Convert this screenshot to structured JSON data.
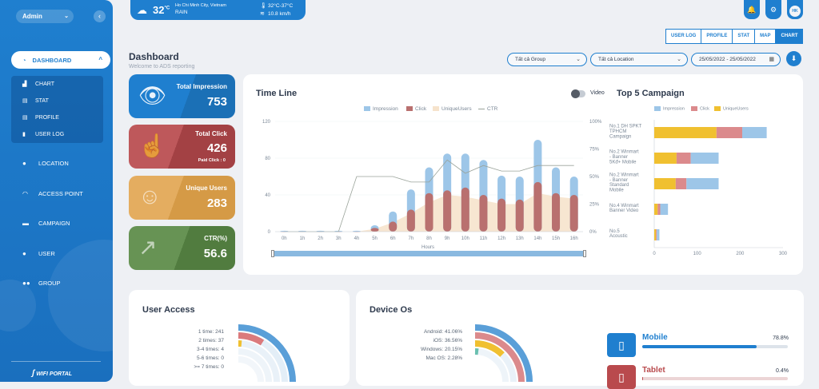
{
  "sidebar": {
    "admin_label": "Admin",
    "dashboard_label": "DASHBOARD",
    "subitems": [
      {
        "label": "CHART",
        "icon": "chart-icon"
      },
      {
        "label": "STAT",
        "icon": "stat-icon"
      },
      {
        "label": "PROFILE",
        "icon": "profile-icon"
      },
      {
        "label": "USER LOG",
        "icon": "log-icon"
      }
    ],
    "items": [
      {
        "label": "LOCATION",
        "icon": "location-icon"
      },
      {
        "label": "ACCESS POINT",
        "icon": "wifi-icon"
      },
      {
        "label": "CAMPAIGN",
        "icon": "campaign-icon"
      },
      {
        "label": "USER",
        "icon": "user-icon"
      },
      {
        "label": "GROUP",
        "icon": "group-icon"
      }
    ],
    "logo_text": "WIFI PORTAL"
  },
  "weather": {
    "temp": "32",
    "unit": "°C",
    "city": "Ho Chi Minh City, Vietnam",
    "condition": "RAIN",
    "range": "32°C-37°C",
    "wind": "10.8 km/h"
  },
  "header": {
    "avatar_initials": "HK",
    "tabs": [
      "USER LOG",
      "PROFILE",
      "STAT",
      "MAP",
      "CHART"
    ],
    "active_tab": "CHART",
    "title": "Dashboard",
    "subtitle": "Welcome to ADS reporting",
    "filter_group": "Tất cả Group",
    "filter_location": "Tất cả Location",
    "date_range": "25/05/2022 - 25/05/2022"
  },
  "stats": [
    {
      "title": "Total Impression",
      "value": "753",
      "color": "#1f7fcf",
      "icon": "eye-icon"
    },
    {
      "title": "Total Click",
      "value": "426",
      "sub": "Paid Click : 0",
      "color": "#b94a4d",
      "icon": "hand-pointer-icon"
    },
    {
      "title": "Unique Users",
      "value": "283",
      "color": "#e0a24a",
      "icon": "smile-icon"
    },
    {
      "title": "CTR(%)",
      "value": "56.6",
      "color": "#5a8a46",
      "icon": "trend-icon"
    }
  ],
  "timeline": {
    "title": "Time Line",
    "toggle_label": "Video",
    "legend": [
      "Impression",
      "Click",
      "UniqueUsers",
      "CTR"
    ],
    "xlabel": "Hours"
  },
  "top5": {
    "title": "Top 5 Campaign",
    "legend": [
      "Impression",
      "Click",
      "UniqueUsers"
    ]
  },
  "user_access": {
    "title": "User Access",
    "rows": [
      "1 time: 241",
      "2 times: 37",
      "3-4 times: 4",
      "5-6 times: 0",
      ">= 7 times: 0"
    ]
  },
  "device_os": {
    "title": "Device Os",
    "rows": [
      "Android: 41.06%",
      "iOS: 36.56%",
      "Windows: 20.15%",
      "Mac OS: 2.28%"
    ],
    "devices": [
      {
        "name": "Mobile",
        "pct": "78.8%",
        "value": 78.8,
        "color": "#1f7fcf"
      },
      {
        "name": "Tablet",
        "pct": "0.4%",
        "value": 0.4,
        "color": "#b94a4d"
      }
    ]
  },
  "chart_data": [
    {
      "type": "bar",
      "title": "Time Line",
      "xlabel": "Hours",
      "ylim": [
        0,
        120
      ],
      "y2lim": [
        0,
        100
      ],
      "y_ticks": [
        0,
        40,
        80,
        120
      ],
      "y2_ticks": [
        "0%",
        "25%",
        "50%",
        "75%",
        "100%"
      ],
      "categories": [
        "0h",
        "1h",
        "2h",
        "3h",
        "4h",
        "5h",
        "6h",
        "7h",
        "8h",
        "9h",
        "10h",
        "11h",
        "12h",
        "13h",
        "14h",
        "15h",
        "16h"
      ],
      "series": [
        {
          "name": "Impression",
          "color": "#9dc6e8",
          "values": [
            1,
            1,
            1,
            1,
            1,
            7,
            22,
            46,
            70,
            85,
            85,
            78,
            61,
            60,
            100,
            70,
            60
          ]
        },
        {
          "name": "Click",
          "color": "#b9706f",
          "values": [
            0,
            0,
            0,
            0,
            0,
            4,
            11,
            24,
            42,
            45,
            48,
            40,
            36,
            35,
            54,
            42,
            40
          ]
        },
        {
          "name": "UniqueUsers",
          "color": "#f6e3cc",
          "values": [
            0,
            0,
            0,
            0,
            0,
            3,
            10,
            20,
            32,
            40,
            38,
            34,
            30,
            30,
            42,
            38,
            36
          ]
        },
        {
          "name": "CTR",
          "color": "#9aa39a",
          "values": [
            0,
            0,
            0,
            0,
            50,
            50,
            50,
            45,
            45,
            65,
            53,
            60,
            55,
            55,
            60,
            60,
            60
          ]
        }
      ]
    },
    {
      "type": "bar",
      "title": "Top 5 Campaign",
      "orientation": "horizontal",
      "stacked": true,
      "xlim": [
        0,
        300
      ],
      "x_ticks": [
        0,
        100,
        200,
        300
      ],
      "categories": [
        "No.1 DH SPKT TPHCM Campaign",
        "No.2 Winmart - Banner 5Kđ+ Mobile",
        "No.2 Winmart - Banner Standard Mobile",
        "No.4 Winmart Banner Video",
        "No.5 Acoustic"
      ],
      "series": [
        {
          "name": "UniqueUsers",
          "color": "#f0c030",
          "values": [
            145,
            52,
            50,
            8,
            4
          ]
        },
        {
          "name": "Click",
          "color": "#db8a8c",
          "values": [
            60,
            33,
            25,
            6,
            2
          ]
        },
        {
          "name": "Impression",
          "color": "#9dc6e8",
          "values": [
            57,
            65,
            75,
            18,
            6
          ]
        }
      ]
    }
  ]
}
